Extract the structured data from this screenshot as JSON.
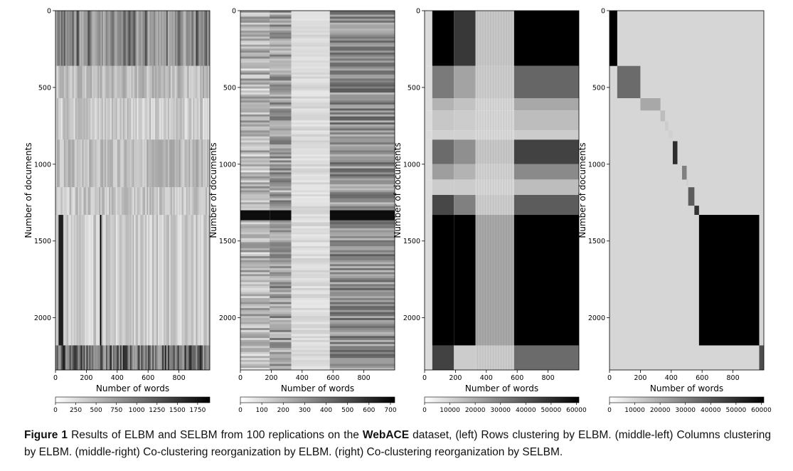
{
  "figure": {
    "caption_label": "Figure 1",
    "caption_pre": "Results of ELBM and SELBM from 100 replications on the",
    "caption_bold": "WebACE",
    "caption_post": "dataset, (left) Rows clustering by ELBM. (middle-left) Columns clustering by ELBM. (middle-right) Co-clustering reorganization by ELBM. (right) Co-clustering reorganization by SELBM."
  },
  "chart_data": [
    {
      "type": "heatmap",
      "panel": "left",
      "xlabel": "Number of words",
      "ylabel": "Number of documents",
      "xlim": [
        0,
        1000
      ],
      "ylim": [
        2340,
        0
      ],
      "xticks": [
        0,
        200,
        400,
        600,
        800
      ],
      "yticks": [
        0,
        500,
        1000,
        1500,
        2000
      ],
      "row_bands": [
        0,
        360,
        570,
        840,
        1150,
        1330,
        2180,
        2340
      ],
      "colorbar": {
        "min": 0,
        "max": 1900,
        "ticks": [
          0,
          250,
          500,
          750,
          1000,
          1250,
          1500,
          1750
        ],
        "cmap": "gray_r"
      }
    },
    {
      "type": "heatmap",
      "panel": "middle-left",
      "xlabel": "Number of words",
      "ylabel": "Number of documents",
      "xlim": [
        0,
        1000
      ],
      "ylim": [
        2340,
        0
      ],
      "xticks": [
        0,
        200,
        400,
        600,
        800
      ],
      "yticks": [
        0,
        500,
        1000,
        1500,
        2000
      ],
      "col_bands": [
        0,
        190,
        330,
        580,
        1000
      ],
      "colorbar": {
        "min": 0,
        "max": 720,
        "ticks": [
          0,
          100,
          200,
          300,
          400,
          500,
          600,
          700
        ],
        "cmap": "gray_r"
      }
    },
    {
      "type": "heatmap",
      "panel": "middle-right",
      "xlabel": "Number of words",
      "ylabel": "Number of documents",
      "xlim": [
        0,
        1000
      ],
      "ylim": [
        2340,
        0
      ],
      "xticks": [
        0,
        200,
        400,
        600,
        800
      ],
      "yticks": [
        0,
        500,
        1000,
        1500,
        2000
      ],
      "row_blocks": [
        [
          0,
          360
        ],
        [
          360,
          570
        ],
        [
          570,
          650
        ],
        [
          650,
          780
        ],
        [
          780,
          840
        ],
        [
          840,
          1000
        ],
        [
          1000,
          1100
        ],
        [
          1100,
          1200
        ],
        [
          1200,
          1330
        ],
        [
          1330,
          2180
        ],
        [
          2180,
          2340
        ]
      ],
      "col_blocks": [
        [
          0,
          50
        ],
        [
          50,
          190
        ],
        [
          190,
          330
        ],
        [
          330,
          580
        ],
        [
          580,
          1000
        ]
      ],
      "block_levels": [
        [
          0.86,
          0.0,
          0.22,
          0.78,
          0.0
        ],
        [
          0.86,
          0.48,
          0.64,
          0.8,
          0.4
        ],
        [
          0.86,
          0.7,
          0.76,
          0.84,
          0.66
        ],
        [
          0.86,
          0.78,
          0.8,
          0.84,
          0.74
        ],
        [
          0.86,
          0.82,
          0.82,
          0.85,
          0.8
        ],
        [
          0.86,
          0.42,
          0.56,
          0.78,
          0.26
        ],
        [
          0.86,
          0.62,
          0.7,
          0.82,
          0.54
        ],
        [
          0.86,
          0.8,
          0.8,
          0.84,
          0.74
        ],
        [
          0.86,
          0.28,
          0.5,
          0.8,
          0.36
        ],
        [
          0.86,
          0.0,
          0.0,
          0.66,
          0.0
        ],
        [
          0.86,
          0.26,
          0.8,
          0.8,
          0.42
        ]
      ],
      "colorbar": {
        "min": 0,
        "max": 61000,
        "ticks": [
          0,
          10000,
          20000,
          30000,
          40000,
          50000,
          60000
        ],
        "cmap": "gray_r"
      }
    },
    {
      "type": "heatmap",
      "panel": "right",
      "xlabel": "Number of words",
      "ylabel": "Number of documents",
      "xlim": [
        0,
        1000
      ],
      "ylim": [
        2340,
        0
      ],
      "xticks": [
        0,
        200,
        400,
        600,
        800
      ],
      "yticks": [
        0,
        500,
        1000,
        1500,
        2000
      ],
      "background_level": 0.84,
      "diagonal_blocks": [
        {
          "x": [
            0,
            50
          ],
          "y": [
            0,
            360
          ],
          "level": 0.0
        },
        {
          "x": [
            50,
            200
          ],
          "y": [
            360,
            570
          ],
          "level": 0.42
        },
        {
          "x": [
            200,
            330
          ],
          "y": [
            570,
            650
          ],
          "level": 0.66
        },
        {
          "x": [
            330,
            360
          ],
          "y": [
            650,
            720
          ],
          "level": 0.74
        },
        {
          "x": [
            360,
            380
          ],
          "y": [
            720,
            780
          ],
          "level": 0.8
        },
        {
          "x": [
            380,
            410
          ],
          "y": [
            780,
            830
          ],
          "level": 0.82
        },
        {
          "x": [
            410,
            440
          ],
          "y": [
            850,
            1000
          ],
          "level": 0.18
        },
        {
          "x": [
            470,
            500
          ],
          "y": [
            1010,
            1100
          ],
          "level": 0.5
        },
        {
          "x": [
            500,
            510
          ],
          "y": [
            1100,
            1140
          ],
          "level": 0.8
        },
        {
          "x": [
            510,
            550
          ],
          "y": [
            1150,
            1270
          ],
          "level": 0.36
        },
        {
          "x": [
            550,
            580
          ],
          "y": [
            1270,
            1330
          ],
          "level": 0.2
        },
        {
          "x": [
            580,
            970
          ],
          "y": [
            1330,
            2180
          ],
          "level": 0.0
        },
        {
          "x": [
            970,
            1000
          ],
          "y": [
            2180,
            2340
          ],
          "level": 0.3
        }
      ],
      "colorbar": {
        "min": 0,
        "max": 61000,
        "ticks": [
          0,
          10000,
          20000,
          30000,
          40000,
          50000,
          60000
        ],
        "cmap": "gray_r"
      }
    }
  ]
}
